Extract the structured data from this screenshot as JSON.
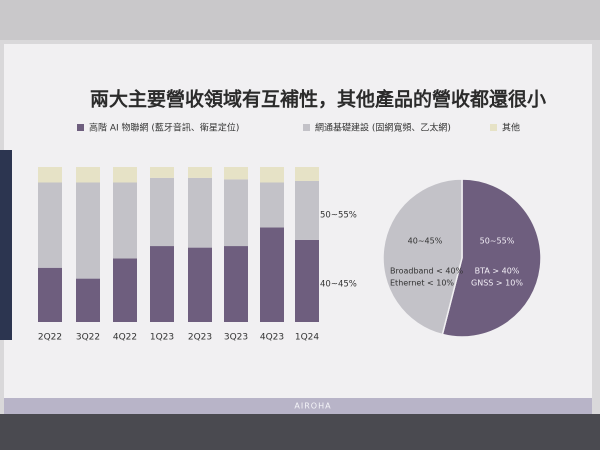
{
  "title": "兩大主要營收領域有互補性，其他產品的營收都還很小",
  "footer": "AIROHA",
  "chart_data": [
    {
      "type": "bar",
      "stacked": true,
      "categories": [
        "2Q22",
        "3Q22",
        "4Q22",
        "1Q23",
        "2Q23",
        "3Q23",
        "4Q23",
        "1Q24"
      ],
      "series": [
        {
          "name": "高階 AI 物聯網 (藍牙音訊、衛星定位)",
          "color": "#6e5e7e",
          "values": [
            35,
            28,
            41,
            49,
            48,
            49,
            61,
            53
          ]
        },
        {
          "name": "網通基礎建設 (固網寬頻、乙太網)",
          "color": "#c3c2c8",
          "values": [
            55,
            62,
            49,
            44,
            45,
            43,
            29,
            38
          ]
        },
        {
          "name": "其他",
          "color": "#e6e2c6",
          "values": [
            10,
            10,
            10,
            7,
            7,
            8,
            10,
            9
          ]
        }
      ],
      "annotations": [
        "50~55%",
        "40~45%"
      ]
    },
    {
      "type": "pie",
      "values": [
        54,
        46
      ],
      "colors": [
        "#6e5e7e",
        "#c3c2c8"
      ],
      "slice_labels": [
        [
          "50~55%",
          "BTA > 40%",
          "GNSS > 10%"
        ],
        [
          "40~45%",
          "Broadband < 40%",
          "Ethernet < 10%"
        ]
      ]
    }
  ]
}
